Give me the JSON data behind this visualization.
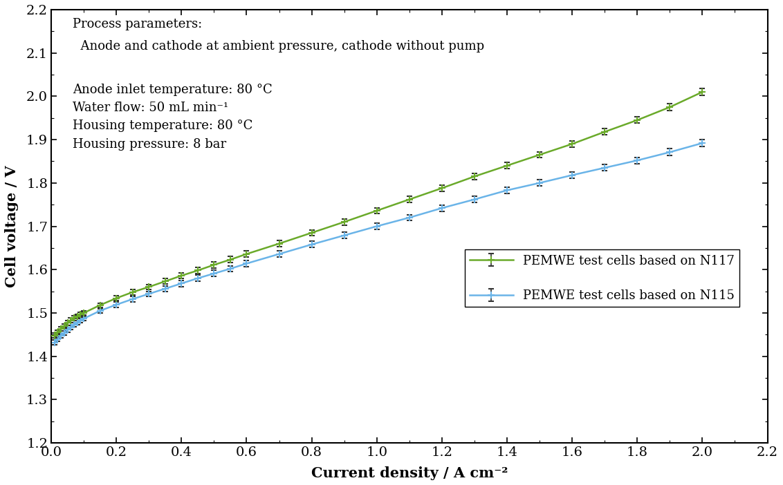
{
  "title": "",
  "xlabel": "Current density / A cm⁻²",
  "ylabel": "Cell voltage / V",
  "xlim": [
    0,
    2.2
  ],
  "ylim": [
    1.2,
    2.2
  ],
  "xticks": [
    0.0,
    0.2,
    0.4,
    0.6,
    0.8,
    1.0,
    1.2,
    1.4,
    1.6,
    1.8,
    2.0,
    2.2
  ],
  "yticks": [
    1.2,
    1.3,
    1.4,
    1.5,
    1.6,
    1.7,
    1.8,
    1.9,
    2.0,
    2.1,
    2.2
  ],
  "annotation_line1": "Process parameters:",
  "annotation_line2": "Anode and cathode at ambient pressure, cathode without pump",
  "annotation_line4": "Anode inlet temperature: 80 °C",
  "annotation_line5": "Water flow: 50 mL min⁻¹",
  "annotation_line6": "Housing temperature: 80 °C",
  "annotation_line7": "Housing pressure: 8 bar",
  "n117_color": "#6aaa2a",
  "n115_color": "#6ab4e8",
  "n117_label": "PEMWE test cells based on N117",
  "n115_label": "PEMWE test cells based on N115",
  "n117_x": [
    0.01,
    0.02,
    0.03,
    0.04,
    0.05,
    0.06,
    0.07,
    0.08,
    0.09,
    0.1,
    0.15,
    0.2,
    0.25,
    0.3,
    0.35,
    0.4,
    0.45,
    0.5,
    0.55,
    0.6,
    0.7,
    0.8,
    0.9,
    1.0,
    1.1,
    1.2,
    1.3,
    1.4,
    1.5,
    1.6,
    1.7,
    1.8,
    1.9,
    2.0
  ],
  "n117_y": [
    1.448,
    1.455,
    1.463,
    1.47,
    1.477,
    1.483,
    1.488,
    1.492,
    1.496,
    1.5,
    1.518,
    1.534,
    1.548,
    1.56,
    1.573,
    1.586,
    1.598,
    1.611,
    1.623,
    1.636,
    1.66,
    1.685,
    1.71,
    1.736,
    1.762,
    1.788,
    1.815,
    1.84,
    1.865,
    1.89,
    1.918,
    1.945,
    1.975,
    2.01
  ],
  "n117_yerr": [
    0.005,
    0.005,
    0.005,
    0.005,
    0.005,
    0.005,
    0.005,
    0.005,
    0.005,
    0.005,
    0.005,
    0.006,
    0.006,
    0.006,
    0.006,
    0.007,
    0.007,
    0.007,
    0.007,
    0.007,
    0.007,
    0.007,
    0.007,
    0.007,
    0.007,
    0.007,
    0.007,
    0.007,
    0.007,
    0.007,
    0.007,
    0.007,
    0.008,
    0.008
  ],
  "n115_x": [
    0.01,
    0.02,
    0.03,
    0.04,
    0.05,
    0.06,
    0.07,
    0.08,
    0.09,
    0.1,
    0.15,
    0.2,
    0.25,
    0.3,
    0.35,
    0.4,
    0.45,
    0.5,
    0.55,
    0.6,
    0.7,
    0.8,
    0.9,
    1.0,
    1.1,
    1.2,
    1.3,
    1.4,
    1.5,
    1.6,
    1.7,
    1.8,
    1.9,
    2.0
  ],
  "n115_y": [
    1.432,
    1.44,
    1.447,
    1.454,
    1.461,
    1.467,
    1.473,
    1.478,
    1.483,
    1.487,
    1.505,
    1.519,
    1.532,
    1.544,
    1.556,
    1.568,
    1.58,
    1.591,
    1.602,
    1.614,
    1.636,
    1.658,
    1.679,
    1.7,
    1.72,
    1.742,
    1.762,
    1.783,
    1.8,
    1.818,
    1.835,
    1.852,
    1.871,
    1.892
  ],
  "n115_yerr": [
    0.005,
    0.005,
    0.005,
    0.005,
    0.005,
    0.005,
    0.005,
    0.005,
    0.005,
    0.005,
    0.005,
    0.006,
    0.006,
    0.006,
    0.006,
    0.007,
    0.007,
    0.007,
    0.007,
    0.007,
    0.007,
    0.007,
    0.007,
    0.007,
    0.007,
    0.007,
    0.007,
    0.007,
    0.007,
    0.007,
    0.007,
    0.007,
    0.008,
    0.008
  ],
  "background_color": "#ffffff",
  "font_size_ticks": 14,
  "font_size_labels": 15,
  "font_size_annotation": 13,
  "font_size_legend": 13
}
